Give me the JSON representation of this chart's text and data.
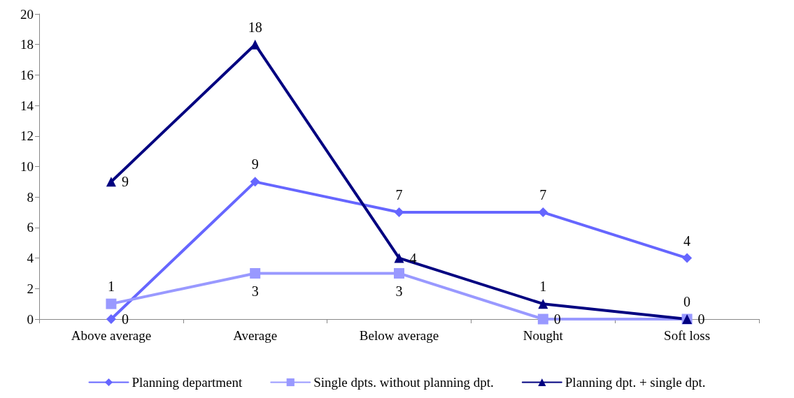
{
  "chart_data": {
    "type": "line",
    "categories": [
      "Above average",
      "Average",
      "Below average",
      "Nought",
      "Soft loss"
    ],
    "series": [
      {
        "name": "Planning department",
        "color": "#6666ff",
        "marker": "diamond",
        "values": [
          0,
          9,
          7,
          7,
          4
        ]
      },
      {
        "name": "Single dpts. without planning dpt.",
        "color": "#9999ff",
        "marker": "square",
        "values": [
          1,
          3,
          3,
          0,
          0
        ]
      },
      {
        "name": "Planning dpt. + single dpt.",
        "color": "#000080",
        "marker": "triangle",
        "values": [
          9,
          18,
          4,
          1,
          0
        ]
      }
    ],
    "ylim": [
      0,
      20
    ],
    "yticks": [
      0,
      2,
      4,
      6,
      8,
      10,
      12,
      14,
      16,
      18,
      20
    ],
    "grid": false,
    "legend": "bottom",
    "data_labels": true,
    "line_style": "solid"
  }
}
